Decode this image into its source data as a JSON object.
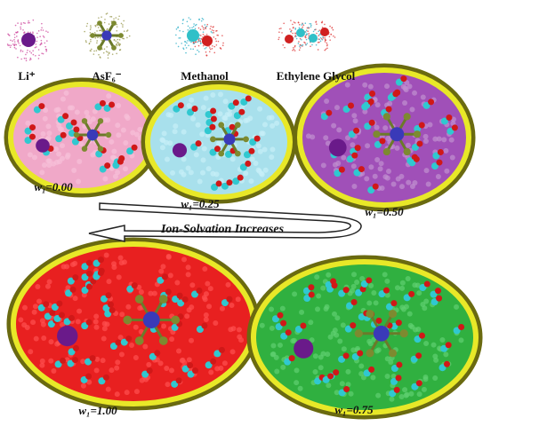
{
  "legend": [
    {
      "label": "Li⁺"
    },
    {
      "label": "AsF₆⁻"
    },
    {
      "label": "Methanol"
    },
    {
      "label": "Ethylene Glycol"
    }
  ],
  "panels": [
    {
      "label": "w₁=0.00"
    },
    {
      "label": "w₁=0.25"
    },
    {
      "label": "w₁=0.50"
    },
    {
      "label": "w₁=1.00"
    },
    {
      "label": "w₁=0.75"
    }
  ],
  "arrow": {
    "label": "Ion-Solvation Increases"
  }
}
